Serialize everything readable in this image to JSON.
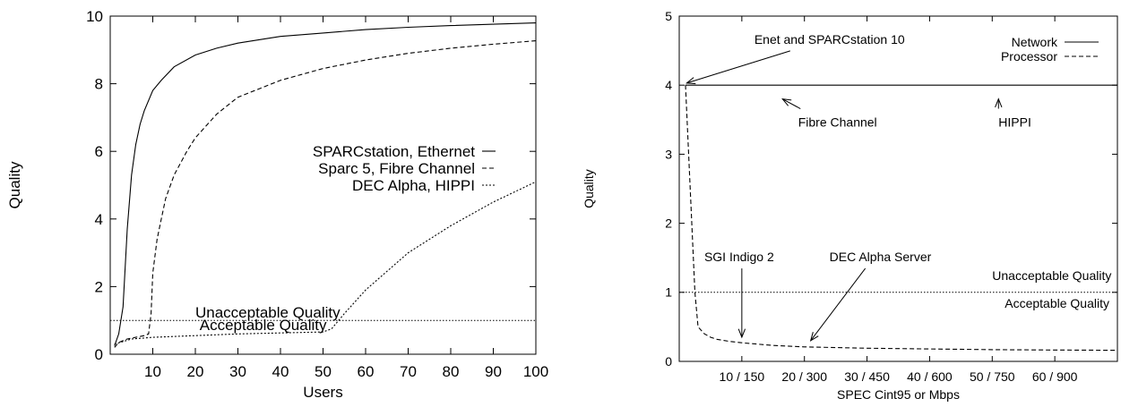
{
  "chart_data": [
    {
      "type": "line",
      "xlabel": "Users",
      "ylabel": "Quality",
      "xlim": [
        0,
        100
      ],
      "ylim": [
        0,
        10
      ],
      "x_ticks": [
        10,
        20,
        30,
        40,
        50,
        60,
        70,
        80,
        90,
        100
      ],
      "y_ticks": [
        0,
        2,
        4,
        6,
        8,
        10
      ],
      "grid": false,
      "legend_position": "middle-right",
      "series": [
        {
          "name": "SPARCstation, Ethernet",
          "dash": "solid",
          "x": [
            1,
            2,
            3,
            4,
            5,
            6,
            7,
            8,
            10,
            12,
            15,
            20,
            25,
            30,
            40,
            50,
            60,
            70,
            80,
            90,
            100
          ],
          "y": [
            0.25,
            0.6,
            1.4,
            3.7,
            5.3,
            6.2,
            6.8,
            7.2,
            7.8,
            8.1,
            8.5,
            8.85,
            9.05,
            9.2,
            9.4,
            9.5,
            9.6,
            9.67,
            9.72,
            9.76,
            9.8
          ]
        },
        {
          "name": "Sparc 5, Fibre Channel",
          "dash": "dashed",
          "x": [
            1,
            2,
            4,
            6,
            8,
            9,
            9.6,
            10,
            11,
            12,
            13,
            15,
            18,
            20,
            25,
            30,
            40,
            50,
            60,
            70,
            80,
            90,
            100
          ],
          "y": [
            0.2,
            0.35,
            0.45,
            0.5,
            0.55,
            0.6,
            1.2,
            2.4,
            3.4,
            4.0,
            4.6,
            5.3,
            6.0,
            6.4,
            7.1,
            7.6,
            8.1,
            8.45,
            8.7,
            8.9,
            9.05,
            9.17,
            9.27
          ]
        },
        {
          "name": "DEC Alpha, HIPPI",
          "dash": "dotted",
          "x": [
            1,
            5,
            10,
            20,
            30,
            40,
            50,
            52,
            55,
            60,
            70,
            80,
            90,
            100
          ],
          "y": [
            0.3,
            0.45,
            0.5,
            0.55,
            0.6,
            0.63,
            0.66,
            0.75,
            1.2,
            1.9,
            3.0,
            3.8,
            4.5,
            5.1
          ]
        }
      ],
      "annotations": [
        {
          "text": "Unacceptable Quality",
          "x": 20,
          "y": 1.08
        },
        {
          "text": "Acceptable Quality",
          "x": 21,
          "y": 0.72
        }
      ],
      "threshold_y": 1
    },
    {
      "type": "line",
      "xlabel": "SPEC Cint95 or Mbps",
      "ylabel": "Quality",
      "xlim": [
        0,
        70
      ],
      "ylim": [
        0,
        5
      ],
      "x_ticks": [
        10,
        20,
        30,
        40,
        50,
        60
      ],
      "x_tick_labels": [
        "10 / 150",
        "20 / 300",
        "30 / 450",
        "40 / 600",
        "50 / 750",
        "60 / 900"
      ],
      "y_ticks": [
        0,
        1,
        2,
        3,
        4,
        5
      ],
      "grid": false,
      "legend_position": "top-right",
      "series": [
        {
          "name": "Network",
          "dash": "solid",
          "x": [
            1,
            70
          ],
          "y": [
            4,
            4
          ]
        },
        {
          "name": "Processor",
          "dash": "dashed",
          "x": [
            1,
            1.5,
            2,
            2.5,
            3,
            4,
            5,
            6,
            8,
            10,
            15,
            20,
            30,
            40,
            50,
            60,
            70
          ],
          "y": [
            4.0,
            3.0,
            2.0,
            1.0,
            0.5,
            0.4,
            0.35,
            0.32,
            0.29,
            0.27,
            0.23,
            0.21,
            0.19,
            0.18,
            0.17,
            0.165,
            0.16
          ]
        }
      ],
      "annotations": [
        {
          "text": "Enet and SPARCstation 10",
          "x": 12,
          "y": 4.6,
          "arrow_to": [
            1.2,
            4.03
          ]
        },
        {
          "text": "Fibre Channel",
          "x": 19,
          "y": 3.4,
          "arrow_to": [
            16.5,
            3.8
          ]
        },
        {
          "text": "HIPPI",
          "x": 51,
          "y": 3.4,
          "arrow_to": [
            51,
            3.8
          ]
        },
        {
          "text": "SGI Indigo 2",
          "x": 4,
          "y": 1.45,
          "arrow_to": [
            10,
            0.35
          ]
        },
        {
          "text": "DEC Alpha Server",
          "x": 24,
          "y": 1.45,
          "arrow_to": [
            21,
            0.3
          ]
        },
        {
          "text": "Unacceptable Quality",
          "x": 50,
          "y": 1.18
        },
        {
          "text": "Acceptable Quality",
          "x": 52,
          "y": 0.78
        }
      ],
      "threshold_y": 1
    }
  ]
}
